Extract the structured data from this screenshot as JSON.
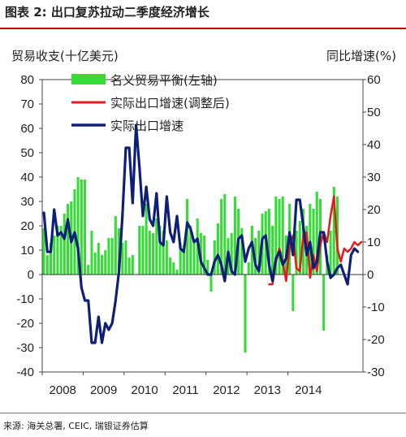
{
  "figure": {
    "title": "图表 2: 出口复苏拉动二季度经济增长",
    "source": "来源: 海关总署, CEIC, 瑞银证券估算"
  },
  "chart_data": {
    "type": "bar+line",
    "ylabel_left": "贸易收支(十亿美元)",
    "ylabel_right": "同比增速(%)",
    "ylim_left": [
      -40,
      80
    ],
    "ylim_right": [
      -30,
      60
    ],
    "yticks_left": [
      80,
      70,
      60,
      50,
      40,
      30,
      20,
      10,
      0,
      -10,
      -20,
      -30,
      -40
    ],
    "yticks_right": [
      60,
      50,
      40,
      30,
      20,
      10,
      0,
      -10,
      -20,
      -30
    ],
    "xticks": [
      "2008",
      "2009",
      "2010",
      "2011",
      "2012",
      "2013",
      "2014"
    ],
    "x_start": "2008-01",
    "legend": [
      "名义贸易平衡(左轴)",
      "实际出口增速(调整后)",
      "实际出口增速"
    ],
    "colors": {
      "bars": "#33dd33",
      "adjusted": "#e41a1c",
      "growth": "#0d1f78"
    },
    "series": [
      {
        "name": "名义贸易平衡(左轴)",
        "axis": "left",
        "values": [
          19,
          8,
          13,
          16,
          20,
          20,
          25,
          29,
          30,
          35,
          40,
          39,
          39,
          4,
          18,
          9,
          13,
          8,
          10,
          15,
          15,
          24,
          19,
          13,
          14,
          7,
          8,
          0,
          20,
          20,
          29,
          18,
          17,
          23,
          20,
          18,
          14,
          7,
          5,
          2,
          13,
          12,
          31,
          20,
          14,
          23,
          17,
          16,
          6,
          -7,
          14,
          21,
          31,
          33,
          15,
          17,
          32,
          27,
          19,
          -32,
          5,
          20,
          15,
          18,
          25,
          26,
          27,
          20,
          32,
          31,
          32,
          16,
          29,
          -15,
          18,
          22,
          27,
          20,
          29,
          27,
          34,
          31,
          -23,
          8,
          18,
          36,
          32
        ]
      },
      {
        "name": "实际出口增速(调整后)",
        "axis": "right",
        "values": [
          null,
          null,
          null,
          null,
          null,
          null,
          null,
          null,
          null,
          null,
          null,
          null,
          null,
          null,
          null,
          null,
          null,
          null,
          null,
          null,
          null,
          null,
          null,
          null,
          null,
          null,
          null,
          null,
          null,
          null,
          null,
          null,
          null,
          null,
          null,
          null,
          null,
          null,
          null,
          null,
          null,
          null,
          null,
          null,
          null,
          null,
          null,
          null,
          null,
          null,
          null,
          null,
          null,
          null,
          null,
          null,
          null,
          null,
          null,
          null,
          null,
          null,
          null,
          null,
          null,
          null,
          -3,
          -3,
          4,
          8,
          4,
          -2,
          9,
          12,
          2,
          1,
          12,
          13,
          -1,
          6,
          1,
          9,
          13,
          10,
          18,
          24,
          8,
          4,
          8,
          7,
          8,
          10,
          9,
          10
        ]
      },
      {
        "name": "实际出口增速",
        "axis": "right",
        "values": [
          19,
          7,
          7,
          20,
          12,
          13,
          11,
          17,
          10,
          13,
          8,
          -4,
          -8,
          -8,
          -21,
          -21,
          -13,
          -21,
          -15,
          -17,
          -15,
          -8,
          1,
          18,
          39,
          39,
          22,
          46,
          33,
          18,
          27,
          17,
          15,
          25,
          10,
          9,
          24,
          13,
          10,
          18,
          8,
          7,
          16,
          14,
          10,
          11,
          4,
          2,
          0,
          0,
          4,
          6,
          3,
          -2,
          7,
          1,
          0,
          11,
          12,
          4,
          8,
          10,
          3,
          1,
          11,
          12,
          3,
          -2,
          5,
          7,
          3,
          5,
          13,
          6,
          23,
          23,
          15,
          6,
          10,
          2,
          4,
          13,
          13,
          4,
          -1,
          0,
          2,
          3,
          0,
          -3,
          6,
          8,
          7
        ]
      }
    ]
  }
}
